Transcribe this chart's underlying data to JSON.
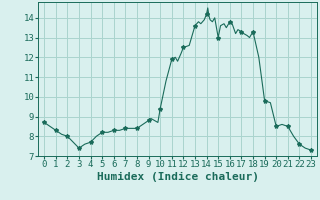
{
  "x": [
    0,
    0.5,
    1,
    1.5,
    2,
    2.5,
    3,
    3.5,
    4,
    4.5,
    5,
    5.5,
    6,
    6.5,
    7,
    7.5,
    8,
    8.5,
    9,
    9.2,
    9.5,
    9.8,
    10,
    10.5,
    11,
    11.3,
    11.5,
    11.8,
    12,
    12.5,
    13,
    13.3,
    13.5,
    13.8,
    14,
    14.1,
    14.2,
    14.3,
    14.5,
    14.7,
    15,
    15.2,
    15.5,
    15.7,
    16,
    16.2,
    16.5,
    16.7,
    17,
    17.2,
    17.5,
    17.7,
    18,
    18.5,
    19,
    19.5,
    20,
    20.5,
    21,
    21.5,
    22,
    22.5,
    23
  ],
  "y": [
    8.7,
    8.5,
    8.3,
    8.1,
    8.0,
    7.7,
    7.4,
    7.6,
    7.7,
    8.0,
    8.2,
    8.2,
    8.3,
    8.3,
    8.4,
    8.4,
    8.4,
    8.6,
    8.8,
    8.9,
    8.8,
    8.7,
    9.4,
    10.8,
    11.9,
    12.0,
    11.8,
    12.2,
    12.5,
    12.6,
    13.6,
    13.8,
    13.7,
    13.9,
    14.2,
    14.5,
    14.1,
    13.9,
    13.8,
    14.0,
    13.0,
    13.6,
    13.7,
    13.5,
    13.8,
    13.7,
    13.2,
    13.4,
    13.3,
    13.2,
    13.1,
    13.0,
    13.3,
    12.0,
    9.8,
    9.7,
    8.5,
    8.6,
    8.5,
    8.0,
    7.6,
    7.4,
    7.3
  ],
  "marker_x": [
    0,
    1,
    2,
    3,
    4,
    5,
    6,
    7,
    8,
    9,
    10,
    11,
    12,
    13,
    14,
    15,
    16,
    17,
    18,
    19,
    20,
    21,
    22,
    23
  ],
  "marker_y": [
    8.7,
    8.3,
    8.0,
    7.4,
    7.7,
    8.2,
    8.3,
    8.4,
    8.4,
    8.8,
    9.4,
    11.9,
    12.5,
    13.6,
    14.2,
    13.0,
    13.8,
    13.3,
    13.3,
    9.8,
    8.5,
    8.5,
    7.6,
    7.3
  ],
  "line_color": "#1a6b5a",
  "marker": "*",
  "marker_size": 3,
  "background_color": "#d9f0ee",
  "grid_color": "#aad4ce",
  "xlabel": "Humidex (Indice chaleur)",
  "xlabel_fontsize": 8,
  "tick_fontsize": 6.5,
  "ylim": [
    7,
    14.8
  ],
  "xlim": [
    -0.5,
    23.5
  ],
  "yticks": [
    7,
    8,
    9,
    10,
    11,
    12,
    13,
    14
  ],
  "xticks": [
    0,
    1,
    2,
    3,
    4,
    5,
    6,
    7,
    8,
    9,
    10,
    11,
    12,
    13,
    14,
    15,
    16,
    17,
    18,
    19,
    20,
    21,
    22,
    23
  ]
}
